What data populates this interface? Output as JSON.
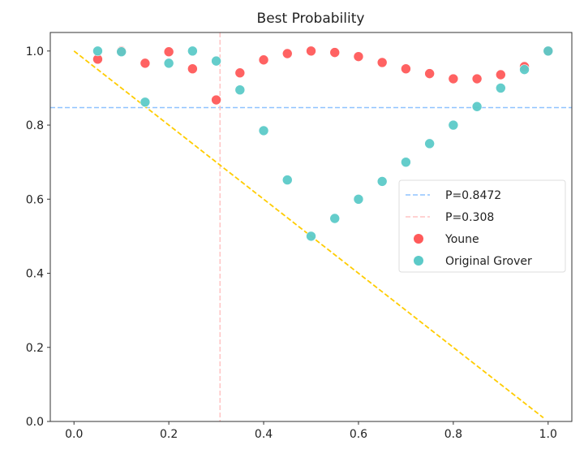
{
  "chart_data": {
    "type": "scatter",
    "title": "Best Probability",
    "xlabel": "",
    "ylabel": "",
    "xlim": [
      -0.05,
      1.05
    ],
    "ylim": [
      0,
      1.05
    ],
    "xticks": [
      0.0,
      0.2,
      0.4,
      0.6,
      0.8,
      1.0
    ],
    "xtick_labels": [
      "0.0",
      "0.2",
      "0.4",
      "0.6",
      "0.8",
      "1.0"
    ],
    "yticks": [
      0.0,
      0.2,
      0.4,
      0.6,
      0.8,
      1.0
    ],
    "ytick_labels": [
      "0.0",
      "0.2",
      "0.4",
      "0.6",
      "0.8",
      "1.0"
    ],
    "x": [
      0.05,
      0.1,
      0.15,
      0.2,
      0.25,
      0.3,
      0.35,
      0.4,
      0.45,
      0.5,
      0.55,
      0.6,
      0.65,
      0.7,
      0.75,
      0.8,
      0.85,
      0.9,
      0.95,
      1.0
    ],
    "series": [
      {
        "name": "Youne",
        "color": "#ff5a5a",
        "values": [
          0.978,
          1.0,
          0.967,
          0.998,
          0.952,
          0.868,
          0.941,
          0.976,
          0.993,
          1.0,
          0.996,
          0.985,
          0.969,
          0.952,
          0.939,
          0.925,
          0.925,
          0.936,
          0.958,
          1.0
        ]
      },
      {
        "name": "Original Grover",
        "color": "#5ccac8",
        "values": [
          1.0,
          0.998,
          0.862,
          0.967,
          1.0,
          0.973,
          0.895,
          0.785,
          0.652,
          0.5,
          0.548,
          0.6,
          0.648,
          0.7,
          0.75,
          0.8,
          0.85,
          0.9,
          0.95,
          1.0
        ]
      }
    ],
    "lines": [
      {
        "name": "P=0.8472",
        "type": "hline",
        "value": 0.8472,
        "color": "#8fc3ff"
      },
      {
        "name": "P=0.308",
        "type": "vline",
        "value": 0.308,
        "color": "#ffc4c4"
      },
      {
        "name": "diagonal",
        "type": "segment",
        "x": [
          0,
          0.99
        ],
        "y": [
          1,
          0.01
        ],
        "color": "#ffcc00"
      }
    ],
    "legend_placement": "center-right",
    "legend": [
      "P=0.8472",
      "P=0.308",
      "Youne",
      "Original Grover"
    ],
    "grid": false
  }
}
